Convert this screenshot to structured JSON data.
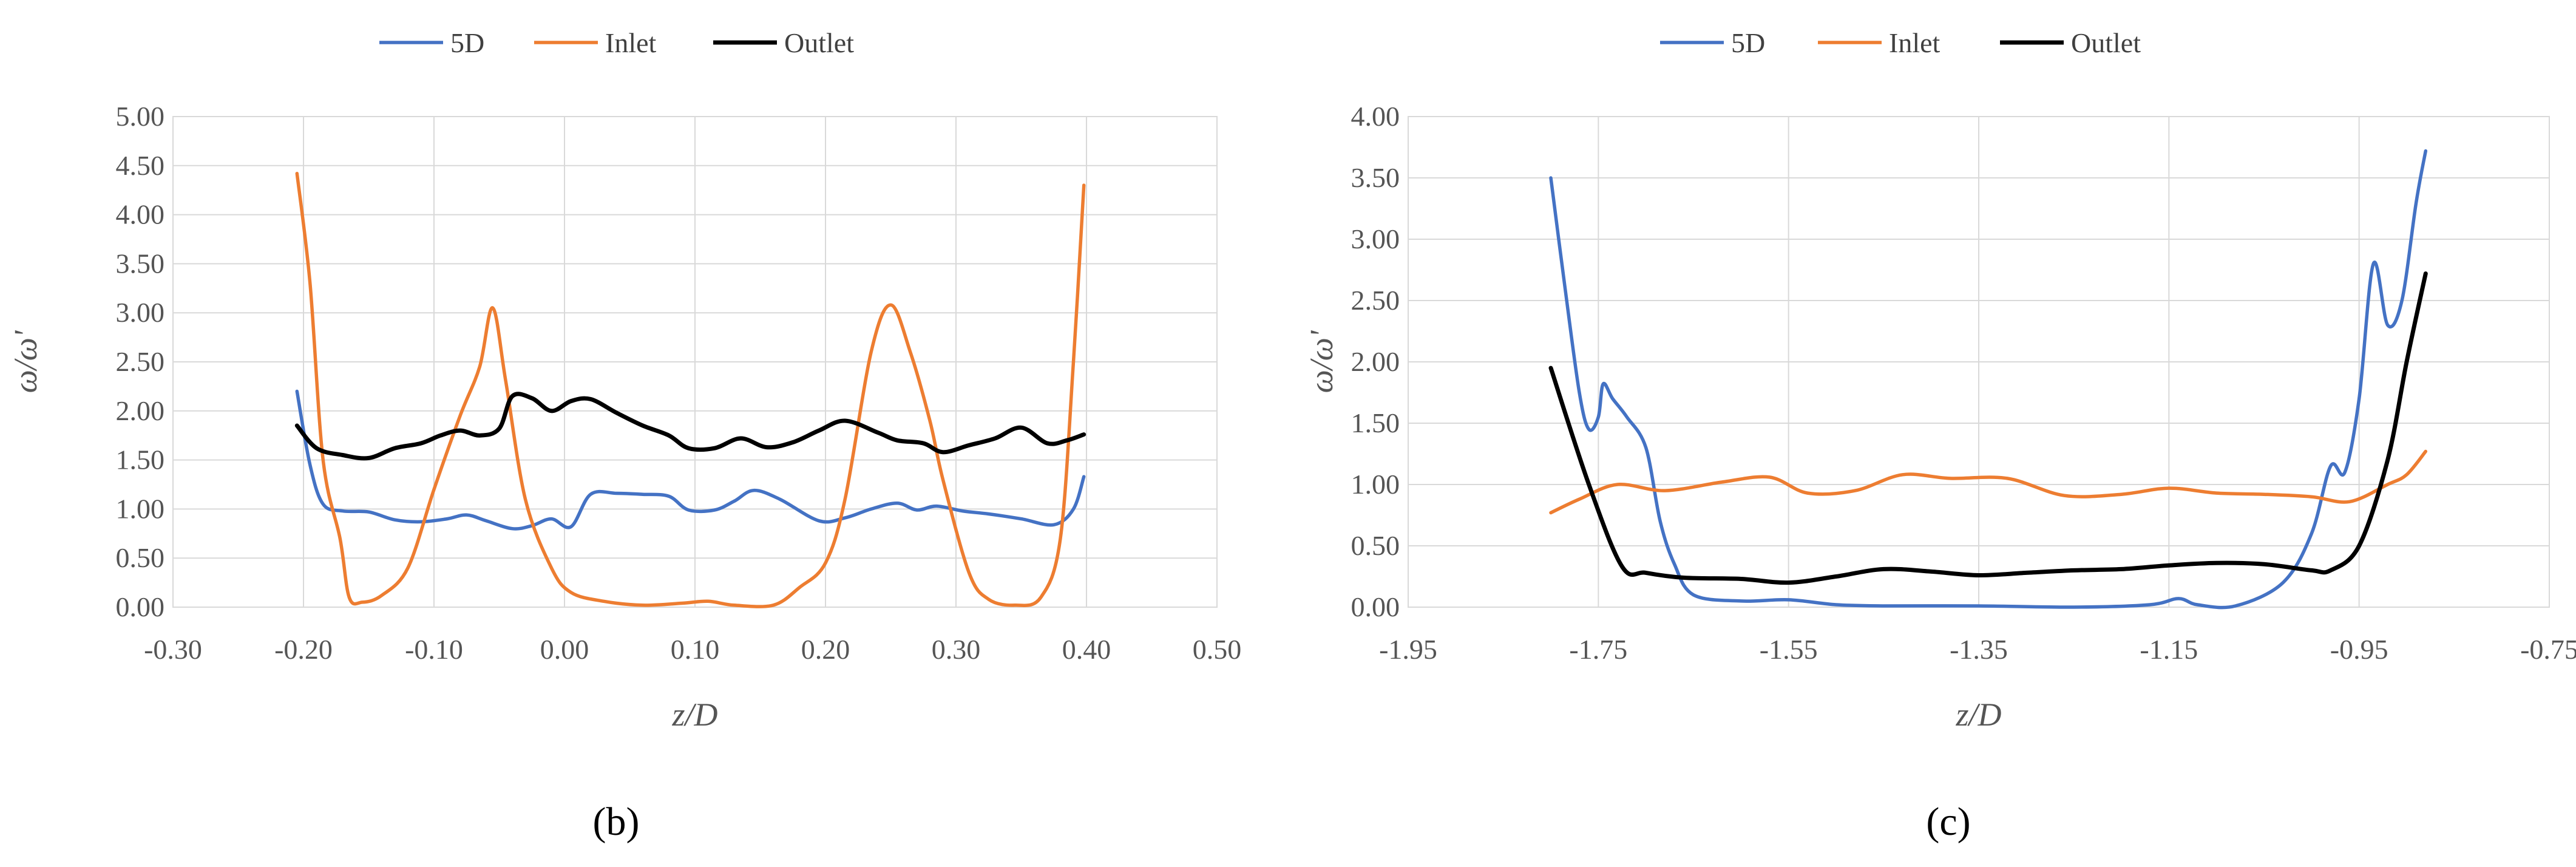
{
  "chart_data": [
    {
      "type": "line",
      "panel_label": "(b)",
      "xlabel": "z/D",
      "ylabel": "ω/ω'",
      "xlim": [
        -0.3,
        0.5
      ],
      "ylim": [
        0,
        5
      ],
      "xticks": [
        "-0.30",
        "-0.20",
        "-0.10",
        "0.00",
        "0.10",
        "0.20",
        "0.30",
        "0.40",
        "0.50"
      ],
      "xtick_values": [
        -0.3,
        -0.2,
        -0.1,
        0.0,
        0.1,
        0.2,
        0.3,
        0.4,
        0.5
      ],
      "yticks": [
        "0.00",
        "0.50",
        "1.00",
        "1.50",
        "2.00",
        "2.50",
        "3.00",
        "3.50",
        "4.00",
        "4.50",
        "5.00"
      ],
      "ytick_values": [
        0,
        0.5,
        1,
        1.5,
        2,
        2.5,
        3,
        3.5,
        4,
        4.5,
        5
      ],
      "grid": true,
      "legend_position": "top",
      "series": [
        {
          "name": "5D",
          "color": "#4472C4",
          "points": [
            [
              -0.205,
              2.2
            ],
            [
              -0.195,
              1.45
            ],
            [
              -0.185,
              1.05
            ],
            [
              -0.17,
              0.98
            ],
            [
              -0.15,
              0.97
            ],
            [
              -0.13,
              0.89
            ],
            [
              -0.11,
              0.87
            ],
            [
              -0.09,
              0.9
            ],
            [
              -0.075,
              0.94
            ],
            [
              -0.06,
              0.88
            ],
            [
              -0.04,
              0.8
            ],
            [
              -0.025,
              0.83
            ],
            [
              -0.01,
              0.9
            ],
            [
              0.005,
              0.82
            ],
            [
              0.02,
              1.15
            ],
            [
              0.04,
              1.16
            ],
            [
              0.06,
              1.15
            ],
            [
              0.08,
              1.13
            ],
            [
              0.095,
              0.99
            ],
            [
              0.115,
              0.99
            ],
            [
              0.13,
              1.08
            ],
            [
              0.145,
              1.19
            ],
            [
              0.165,
              1.1
            ],
            [
              0.195,
              0.88
            ],
            [
              0.215,
              0.91
            ],
            [
              0.235,
              1.0
            ],
            [
              0.255,
              1.06
            ],
            [
              0.27,
              0.99
            ],
            [
              0.285,
              1.03
            ],
            [
              0.305,
              0.98
            ],
            [
              0.325,
              0.95
            ],
            [
              0.35,
              0.9
            ],
            [
              0.375,
              0.84
            ],
            [
              0.39,
              1.0
            ],
            [
              0.398,
              1.33
            ]
          ]
        },
        {
          "name": "Inlet",
          "color": "#ED7D31",
          "points": [
            [
              -0.205,
              4.42
            ],
            [
              -0.195,
              3.3
            ],
            [
              -0.185,
              1.5
            ],
            [
              -0.172,
              0.7
            ],
            [
              -0.165,
              0.1
            ],
            [
              -0.155,
              0.05
            ],
            [
              -0.14,
              0.12
            ],
            [
              -0.12,
              0.4
            ],
            [
              -0.1,
              1.2
            ],
            [
              -0.08,
              1.95
            ],
            [
              -0.065,
              2.45
            ],
            [
              -0.055,
              3.05
            ],
            [
              -0.045,
              2.3
            ],
            [
              -0.03,
              1.1
            ],
            [
              -0.01,
              0.4
            ],
            [
              0.005,
              0.15
            ],
            [
              0.03,
              0.06
            ],
            [
              0.06,
              0.02
            ],
            [
              0.09,
              0.04
            ],
            [
              0.11,
              0.06
            ],
            [
              0.13,
              0.02
            ],
            [
              0.16,
              0.02
            ],
            [
              0.18,
              0.2
            ],
            [
              0.2,
              0.45
            ],
            [
              0.215,
              1.1
            ],
            [
              0.235,
              2.6
            ],
            [
              0.25,
              3.08
            ],
            [
              0.265,
              2.6
            ],
            [
              0.28,
              1.9
            ],
            [
              0.29,
              1.3
            ],
            [
              0.31,
              0.35
            ],
            [
              0.325,
              0.08
            ],
            [
              0.345,
              0.02
            ],
            [
              0.365,
              0.1
            ],
            [
              0.38,
              0.7
            ],
            [
              0.39,
              2.5
            ],
            [
              0.398,
              4.3
            ]
          ]
        },
        {
          "name": "Outlet",
          "color": "#000000",
          "points": [
            [
              -0.205,
              1.85
            ],
            [
              -0.19,
              1.62
            ],
            [
              -0.17,
              1.55
            ],
            [
              -0.15,
              1.52
            ],
            [
              -0.13,
              1.62
            ],
            [
              -0.11,
              1.67
            ],
            [
              -0.095,
              1.75
            ],
            [
              -0.08,
              1.8
            ],
            [
              -0.065,
              1.75
            ],
            [
              -0.05,
              1.82
            ],
            [
              -0.04,
              2.15
            ],
            [
              -0.025,
              2.13
            ],
            [
              -0.01,
              2.0
            ],
            [
              0.005,
              2.1
            ],
            [
              0.02,
              2.12
            ],
            [
              0.04,
              1.98
            ],
            [
              0.06,
              1.85
            ],
            [
              0.08,
              1.75
            ],
            [
              0.095,
              1.62
            ],
            [
              0.115,
              1.62
            ],
            [
              0.135,
              1.72
            ],
            [
              0.155,
              1.63
            ],
            [
              0.175,
              1.68
            ],
            [
              0.195,
              1.8
            ],
            [
              0.215,
              1.9
            ],
            [
              0.24,
              1.78
            ],
            [
              0.255,
              1.7
            ],
            [
              0.275,
              1.67
            ],
            [
              0.29,
              1.58
            ],
            [
              0.31,
              1.65
            ],
            [
              0.33,
              1.72
            ],
            [
              0.35,
              1.83
            ],
            [
              0.37,
              1.67
            ],
            [
              0.385,
              1.7
            ],
            [
              0.398,
              1.76
            ]
          ]
        }
      ]
    },
    {
      "type": "line",
      "panel_label": "(c)",
      "xlabel": "z/D",
      "ylabel": "ω/ω'",
      "xlim": [
        -1.95,
        -0.75
      ],
      "ylim": [
        0,
        4
      ],
      "xticks": [
        "-1.95",
        "-1.75",
        "-1.55",
        "-1.35",
        "-1.15",
        "-0.95",
        "-0.75"
      ],
      "xtick_values": [
        -1.95,
        -1.75,
        -1.55,
        -1.35,
        -1.15,
        -0.95,
        -0.75
      ],
      "yticks": [
        "0.00",
        "0.50",
        "1.00",
        "1.50",
        "2.00",
        "2.50",
        "3.00",
        "3.50",
        "4.00"
      ],
      "ytick_values": [
        0,
        0.5,
        1,
        1.5,
        2,
        2.5,
        3,
        3.5,
        4
      ],
      "grid": true,
      "legend_position": "top",
      "series": [
        {
          "name": "5D",
          "color": "#4472C4",
          "points": [
            [
              -1.8,
              3.5
            ],
            [
              -1.785,
              2.6
            ],
            [
              -1.77,
              1.75
            ],
            [
              -1.76,
              1.45
            ],
            [
              -1.75,
              1.55
            ],
            [
              -1.745,
              1.82
            ],
            [
              -1.735,
              1.7
            ],
            [
              -1.72,
              1.55
            ],
            [
              -1.7,
              1.3
            ],
            [
              -1.685,
              0.7
            ],
            [
              -1.67,
              0.35
            ],
            [
              -1.65,
              0.1
            ],
            [
              -1.6,
              0.05
            ],
            [
              -1.55,
              0.06
            ],
            [
              -1.5,
              0.02
            ],
            [
              -1.45,
              0.01
            ],
            [
              -1.35,
              0.01
            ],
            [
              -1.25,
              0.0
            ],
            [
              -1.17,
              0.02
            ],
            [
              -1.14,
              0.07
            ],
            [
              -1.12,
              0.02
            ],
            [
              -1.08,
              0.01
            ],
            [
              -1.03,
              0.2
            ],
            [
              -1.0,
              0.6
            ],
            [
              -0.98,
              1.15
            ],
            [
              -0.965,
              1.1
            ],
            [
              -0.95,
              1.7
            ],
            [
              -0.935,
              2.8
            ],
            [
              -0.92,
              2.3
            ],
            [
              -0.905,
              2.5
            ],
            [
              -0.89,
              3.3
            ],
            [
              -0.88,
              3.72
            ]
          ]
        },
        {
          "name": "Inlet",
          "color": "#ED7D31",
          "points": [
            [
              -1.8,
              0.77
            ],
            [
              -1.77,
              0.88
            ],
            [
              -1.73,
              1.0
            ],
            [
              -1.68,
              0.95
            ],
            [
              -1.62,
              1.02
            ],
            [
              -1.57,
              1.06
            ],
            [
              -1.53,
              0.93
            ],
            [
              -1.48,
              0.95
            ],
            [
              -1.43,
              1.08
            ],
            [
              -1.38,
              1.05
            ],
            [
              -1.32,
              1.05
            ],
            [
              -1.26,
              0.91
            ],
            [
              -1.2,
              0.92
            ],
            [
              -1.15,
              0.97
            ],
            [
              -1.1,
              0.93
            ],
            [
              -1.05,
              0.92
            ],
            [
              -1.0,
              0.9
            ],
            [
              -0.96,
              0.86
            ],
            [
              -0.92,
              1.0
            ],
            [
              -0.9,
              1.08
            ],
            [
              -0.88,
              1.27
            ]
          ]
        },
        {
          "name": "Outlet",
          "color": "#000000",
          "points": [
            [
              -1.8,
              1.95
            ],
            [
              -1.76,
              1.0
            ],
            [
              -1.725,
              0.33
            ],
            [
              -1.7,
              0.28
            ],
            [
              -1.66,
              0.24
            ],
            [
              -1.6,
              0.23
            ],
            [
              -1.55,
              0.2
            ],
            [
              -1.5,
              0.25
            ],
            [
              -1.45,
              0.31
            ],
            [
              -1.4,
              0.29
            ],
            [
              -1.35,
              0.26
            ],
            [
              -1.3,
              0.28
            ],
            [
              -1.25,
              0.3
            ],
            [
              -1.2,
              0.31
            ],
            [
              -1.15,
              0.34
            ],
            [
              -1.1,
              0.36
            ],
            [
              -1.05,
              0.35
            ],
            [
              -1.0,
              0.3
            ],
            [
              -0.98,
              0.3
            ],
            [
              -0.95,
              0.5
            ],
            [
              -0.92,
              1.2
            ],
            [
              -0.9,
              2.0
            ],
            [
              -0.88,
              2.72
            ]
          ]
        }
      ]
    }
  ]
}
